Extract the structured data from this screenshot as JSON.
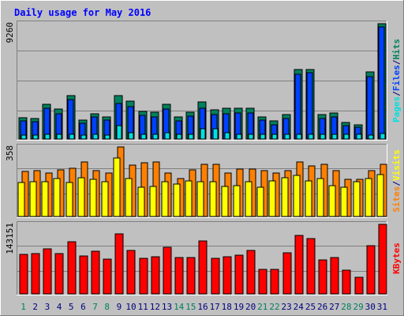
{
  "title": "Daily usage for May 2016",
  "colors": {
    "background": "#C0C0C0",
    "frame_light": "#FFFFFF",
    "frame_dark": "#808080",
    "title": "#0000FF",
    "grid": "#808080",
    "hits": "#00805C",
    "files": "#0040FF",
    "pages": "#00E0E0",
    "visits": "#FFFF00",
    "sites": "#FF8000",
    "kbytes": "#FF0000",
    "weekend_day": "#00805C",
    "weekday": "#000080"
  },
  "chart_data": [
    {
      "type": "bar",
      "panel": "top",
      "max_label": "9260",
      "ylim": [
        0,
        9260
      ],
      "axis_words": [
        {
          "text": "Pages",
          "color": "#00E0E0"
        },
        {
          "text": "/",
          "color": "#000080"
        },
        {
          "text": "Files",
          "color": "#0040FF"
        },
        {
          "text": "/",
          "color": "#000080"
        },
        {
          "text": "Hits",
          "color": "#00805C"
        }
      ],
      "categories": [
        "1",
        "2",
        "3",
        "4",
        "5",
        "6",
        "7",
        "8",
        "9",
        "10",
        "11",
        "12",
        "13",
        "14",
        "15",
        "16",
        "17",
        "18",
        "19",
        "20",
        "21",
        "22",
        "23",
        "24",
        "25",
        "26",
        "27",
        "28",
        "29",
        "30",
        "31"
      ],
      "series": [
        {
          "name": "Hits",
          "values": [
            1700,
            1650,
            2800,
            2400,
            3500,
            1550,
            2050,
            1750,
            3500,
            3050,
            2250,
            2150,
            2800,
            1800,
            2150,
            2950,
            2350,
            2450,
            2450,
            2450,
            1800,
            1450,
            1950,
            5600,
            5600,
            1950,
            2100,
            1350,
            1150,
            5400,
            9250
          ]
        },
        {
          "name": "Files",
          "values": [
            1450,
            1400,
            2450,
            2000,
            3200,
            1300,
            1750,
            1500,
            2850,
            2600,
            1900,
            1800,
            2400,
            1450,
            1850,
            2500,
            1950,
            2000,
            2100,
            2100,
            1550,
            1150,
            1650,
            5200,
            5350,
            1650,
            1750,
            1100,
            950,
            5000,
            9000
          ]
        },
        {
          "name": "Pages",
          "values": [
            300,
            300,
            350,
            350,
            350,
            300,
            350,
            300,
            1100,
            500,
            400,
            350,
            500,
            350,
            350,
            850,
            800,
            500,
            400,
            400,
            400,
            350,
            350,
            400,
            350,
            400,
            350,
            350,
            350,
            300,
            450
          ]
        }
      ]
    },
    {
      "type": "bar",
      "panel": "middle",
      "max_label": "358",
      "ylim": [
        0,
        358
      ],
      "axis_words": [
        {
          "text": "Sites",
          "color": "#FF8000"
        },
        {
          "text": "/",
          "color": "#000080"
        },
        {
          "text": "Visits",
          "color": "#FFFF00"
        }
      ],
      "categories": [
        "1",
        "2",
        "3",
        "4",
        "5",
        "6",
        "7",
        "8",
        "9",
        "10",
        "11",
        "12",
        "13",
        "14",
        "15",
        "16",
        "17",
        "18",
        "19",
        "20",
        "21",
        "22",
        "23",
        "24",
        "25",
        "26",
        "27",
        "28",
        "29",
        "30",
        "31"
      ],
      "series": [
        {
          "name": "Visits",
          "values": [
            175,
            180,
            180,
            195,
            175,
            200,
            190,
            180,
            300,
            195,
            150,
            155,
            180,
            165,
            185,
            180,
            180,
            155,
            160,
            180,
            150,
            185,
            200,
            210,
            185,
            195,
            160,
            150,
            180,
            195,
            215
          ]
        },
        {
          "name": "Sites",
          "values": [
            230,
            235,
            225,
            240,
            250,
            280,
            235,
            225,
            358,
            265,
            275,
            280,
            225,
            195,
            240,
            270,
            270,
            225,
            245,
            245,
            235,
            225,
            235,
            280,
            260,
            270,
            235,
            190,
            190,
            235,
            270
          ]
        }
      ]
    },
    {
      "type": "bar",
      "panel": "bottom",
      "max_label": "143151",
      "ylim": [
        0,
        143151
      ],
      "axis_words": [
        {
          "text": "KBytes",
          "color": "#FF0000"
        }
      ],
      "categories": [
        "1",
        "2",
        "3",
        "4",
        "5",
        "6",
        "7",
        "8",
        "9",
        "10",
        "11",
        "12",
        "13",
        "14",
        "15",
        "16",
        "17",
        "18",
        "19",
        "20",
        "21",
        "22",
        "23",
        "24",
        "25",
        "26",
        "27",
        "28",
        "29",
        "30",
        "31"
      ],
      "series": [
        {
          "name": "KBytes",
          "values": [
            82000,
            83500,
            92000,
            83500,
            107000,
            77500,
            88500,
            72000,
            124000,
            89000,
            73000,
            76000,
            96000,
            75000,
            75000,
            109000,
            73000,
            77000,
            79000,
            90000,
            51000,
            51000,
            84500,
            120000,
            114000,
            70000,
            75500,
            49000,
            34000,
            100000,
            143000
          ]
        }
      ]
    }
  ]
}
